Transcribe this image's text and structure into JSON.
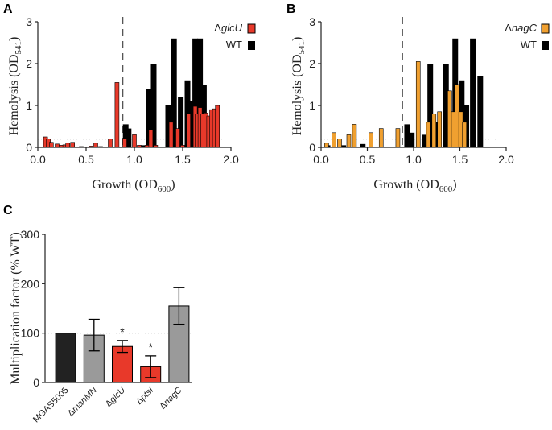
{
  "colors": {
    "red": "#e8392a",
    "orange": "#f0a030",
    "black": "#000000",
    "gray": "#9a9a9a",
    "dark": "#222222"
  },
  "chart_data": [
    {
      "panel": "A",
      "type": "bar",
      "xlabel": "Growth (OD600)",
      "ylabel": "Hemolysis (OD541)",
      "xlim": [
        0,
        2.0
      ],
      "ylim": [
        0,
        3
      ],
      "xticks": [
        "0.0",
        "0.5",
        "1.0",
        "1.5",
        "2.0"
      ],
      "yticks": [
        "0",
        "1",
        "2",
        "3"
      ],
      "threshold": 0.2,
      "vline_x": 0.88,
      "series": [
        {
          "name": "ΔglcU",
          "color": "#e8392a",
          "x": [
            0.08,
            0.11,
            0.14,
            0.2,
            0.24,
            0.28,
            0.31,
            0.36,
            0.45,
            0.55,
            0.6,
            0.65,
            0.75,
            0.82,
            0.9,
            1.0,
            1.05,
            1.13,
            1.17,
            1.22,
            1.38,
            1.45,
            1.5,
            1.56,
            1.63,
            1.65,
            1.68,
            1.71,
            1.74,
            1.77,
            1.8,
            1.83,
            1.86
          ],
          "values": [
            0.25,
            0.2,
            0.12,
            0.08,
            0.05,
            0.06,
            0.1,
            0.12,
            0.02,
            0.03,
            0.1,
            0.02,
            0.2,
            1.55,
            0.2,
            0.3,
            0.05,
            0.05,
            0.42,
            0.05,
            0.6,
            0.45,
            0.05,
            0.8,
            0.98,
            0.8,
            0.95,
            0.8,
            0.82,
            0.75,
            0.9,
            0.92,
            1.0
          ]
        },
        {
          "name": "WT",
          "color": "#000000",
          "x": [
            0.91,
            0.94,
            1.1,
            1.15,
            1.2,
            1.35,
            1.38,
            1.41,
            1.48,
            1.55,
            1.59,
            1.63,
            1.68,
            1.72
          ],
          "values": [
            0.55,
            0.45,
            0.05,
            1.4,
            2.0,
            1.0,
            0.6,
            2.6,
            1.2,
            1.6,
            1.1,
            2.6,
            2.6,
            1.5
          ]
        }
      ]
    },
    {
      "panel": "B",
      "type": "bar",
      "xlabel": "Growth (OD600)",
      "ylabel": "Hemolysis (OD541)",
      "xlim": [
        0,
        2.0
      ],
      "ylim": [
        0,
        3
      ],
      "xticks": [
        "0.0",
        "0.5",
        "1.0",
        "1.5",
        "2.0"
      ],
      "yticks": [
        "0",
        "1",
        "2",
        "3"
      ],
      "threshold": 0.2,
      "vline_x": 0.88,
      "series": [
        {
          "name": "ΔnagC",
          "color": "#f0a030",
          "x": [
            0.06,
            0.14,
            0.2,
            0.3,
            0.36,
            0.54,
            0.65,
            0.83,
            1.05,
            1.16,
            1.22,
            1.28,
            1.39,
            1.43,
            1.47,
            1.51,
            1.55
          ],
          "values": [
            0.1,
            0.35,
            0.2,
            0.3,
            0.55,
            0.35,
            0.45,
            0.45,
            2.05,
            0.6,
            0.8,
            0.85,
            1.35,
            0.85,
            1.5,
            0.85,
            0.6
          ]
        },
        {
          "name": "WT",
          "color": "#000000",
          "x": [
            0.07,
            0.24,
            0.45,
            0.93,
            0.98,
            1.12,
            1.18,
            1.25,
            1.35,
            1.45,
            1.52,
            1.57,
            1.64,
            1.72
          ],
          "values": [
            0.05,
            0.05,
            0.08,
            0.55,
            0.35,
            0.3,
            2.0,
            0.6,
            2.0,
            2.6,
            1.6,
            1.0,
            2.6,
            1.7
          ]
        }
      ]
    },
    {
      "panel": "C",
      "type": "bar",
      "ylabel": "Multiplication factor (% WT)",
      "ylim": [
        0,
        300
      ],
      "yticks": [
        "0",
        "100",
        "200",
        "300"
      ],
      "reference": 100,
      "categories": [
        "MGAS5005",
        "ΔmanMN",
        "ΔglcU",
        "ΔptsI",
        "ΔnagC"
      ],
      "values": [
        100,
        96,
        73,
        32,
        155
      ],
      "errors": [
        0,
        32,
        12,
        22,
        37
      ],
      "colors": [
        "#222222",
        "#9a9a9a",
        "#e8392a",
        "#e8392a",
        "#9a9a9a"
      ],
      "significance": [
        "",
        "",
        "*",
        "*",
        ""
      ]
    }
  ],
  "panel_labels": [
    "A",
    "B",
    "C"
  ],
  "legend_A": [
    "ΔglcU",
    "WT"
  ],
  "legend_B": [
    "ΔnagC",
    "WT"
  ]
}
